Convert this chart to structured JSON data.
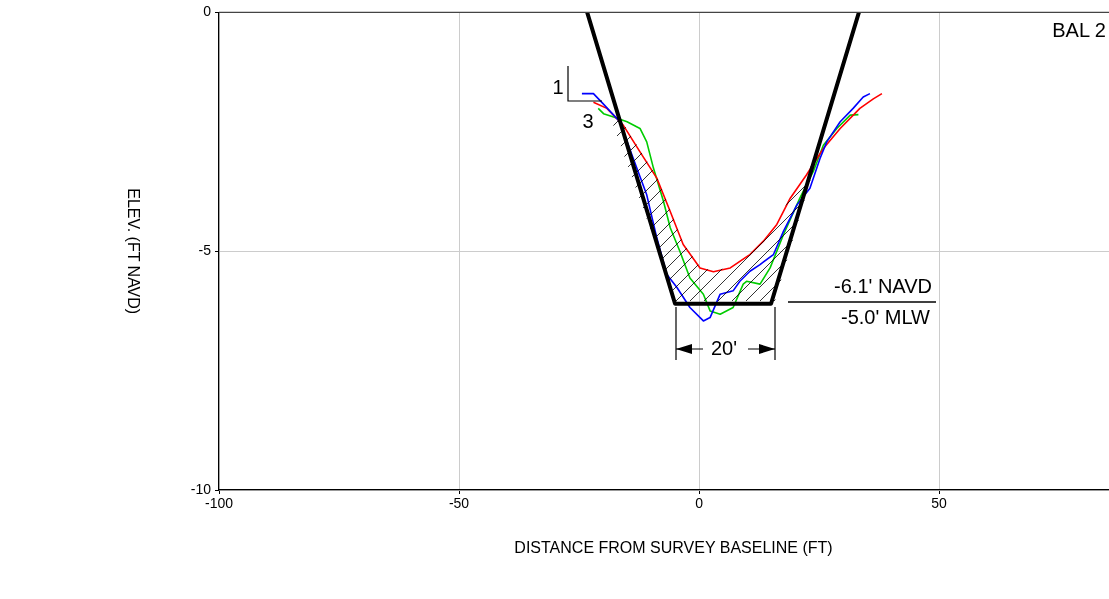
{
  "chart_data": {
    "type": "line",
    "title": "BAL 2",
    "xlabel": "DISTANCE FROM SURVEY BASELINE (FT)",
    "ylabel": "ELEV. (FT NAVD)",
    "xlim": [
      -100,
      85.4
    ],
    "xticks": [
      -100,
      -50,
      0,
      50
    ],
    "ylim": [
      -10,
      0
    ],
    "yticks": [
      0,
      -5,
      -10
    ],
    "grid": true,
    "marker": "none",
    "line_style": "solid",
    "series": [
      {
        "color": "#000000",
        "x": [
          -23.3,
          -5,
          15,
          33.3
        ],
        "values": [
          0,
          -6.1,
          -6.1,
          0
        ]
      },
      {
        "color": "#0000ff",
        "x": [
          -24.4,
          -22.0,
          -20,
          -16.5,
          -13.7,
          -10.9,
          -8.8,
          -6.7,
          -4.6,
          -1.9,
          0.9,
          2.3,
          4.4,
          7.1,
          8.5,
          10.6,
          12.7,
          15.5,
          17.6,
          20.4,
          23.1,
          25.2,
          26.6,
          29.4,
          32.1,
          34.2,
          35.6
        ],
        "values": [
          -1.7,
          -1.7,
          -1.91,
          -2.29,
          -3.06,
          -3.82,
          -4.72,
          -5.49,
          -5.76,
          -6.18,
          -6.46,
          -6.39,
          -5.9,
          -5.83,
          -5.63,
          -5.42,
          -5.28,
          -5.07,
          -4.58,
          -4.03,
          -3.68,
          -3.06,
          -2.71,
          -2.29,
          -2.01,
          -1.77,
          -1.7
        ]
      },
      {
        "color": "#ff0000",
        "x": [
          -22,
          -19.2,
          -15.8,
          -12.3,
          -8.8,
          -6,
          -3.3,
          0.2,
          3,
          6.5,
          10.6,
          13.4,
          16.2,
          19,
          22.4,
          25.9,
          29.4,
          33.5,
          36.3,
          38.1
        ],
        "values": [
          -1.88,
          -2.01,
          -2.36,
          -2.92,
          -3.47,
          -4.17,
          -4.86,
          -5.35,
          -5.43,
          -5.35,
          -5.07,
          -4.79,
          -4.44,
          -3.89,
          -3.4,
          -2.85,
          -2.43,
          -2.01,
          -1.81,
          -1.7
        ]
      },
      {
        "color": "#00cc00",
        "x": [
          -21,
          -19.9,
          -17.8,
          -15,
          -12.3,
          -10.9,
          -9.5,
          -7.4,
          -6,
          -4,
          -1.9,
          0.9,
          2.3,
          4.4,
          7.1,
          9.2,
          9.9,
          12.7,
          14.8,
          17.6,
          21,
          23.8,
          25.9,
          28.7,
          31.5,
          33.2
        ],
        "values": [
          -2.01,
          -2.12,
          -2.19,
          -2.29,
          -2.43,
          -2.71,
          -3.26,
          -3.96,
          -4.51,
          -5,
          -5.56,
          -5.9,
          -6.25,
          -6.32,
          -6.18,
          -5.69,
          -5.63,
          -5.69,
          -5.35,
          -4.65,
          -3.89,
          -3.33,
          -2.78,
          -2.43,
          -2.15,
          -2.14
        ]
      }
    ],
    "annotations": [
      "1",
      "3",
      "20'",
      "-6.1' NAVD",
      "-5.0' MLW"
    ]
  }
}
